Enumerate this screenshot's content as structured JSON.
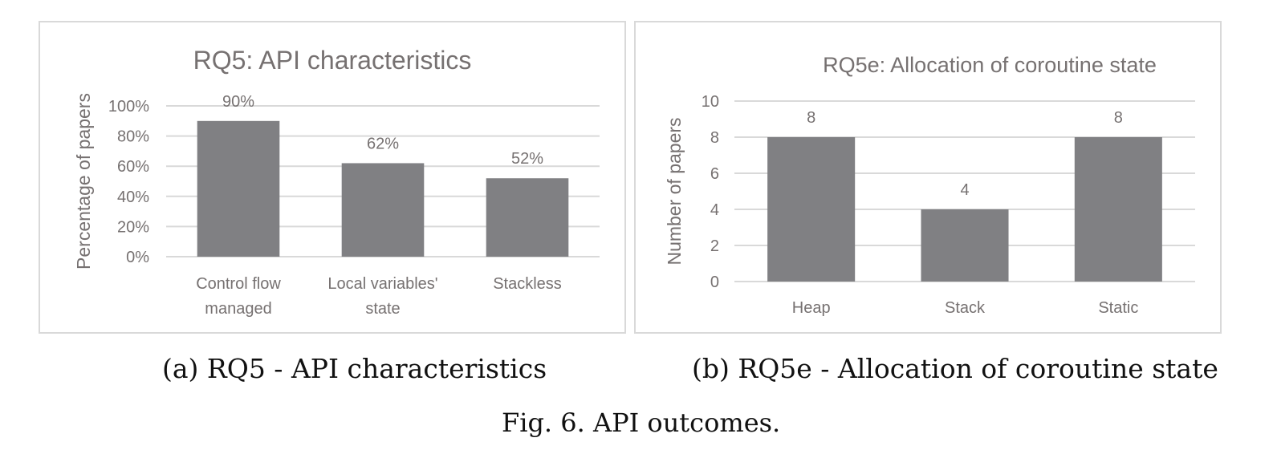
{
  "chart_data": [
    {
      "type": "bar",
      "title": "RQ5: API characteristics",
      "xlabel": "",
      "ylabel": "Percentage of papers",
      "categories": [
        [
          "Control flow",
          "managed"
        ],
        [
          "Local variables'",
          "state"
        ],
        [
          "Stackless"
        ]
      ],
      "values": [
        90,
        62,
        52
      ],
      "data_labels": [
        "90%",
        "62%",
        "52%"
      ],
      "yticks": [
        "0%",
        "20%",
        "40%",
        "60%",
        "80%",
        "100%"
      ],
      "ylim": [
        0,
        100
      ],
      "grid": true,
      "bar_color": "#808083"
    },
    {
      "type": "bar",
      "title": "RQ5e: Allocation of coroutine state",
      "xlabel": "",
      "ylabel": "Number of papers",
      "categories": [
        [
          "Heap"
        ],
        [
          "Stack"
        ],
        [
          "Static"
        ]
      ],
      "values": [
        8,
        4,
        8
      ],
      "data_labels": [
        "8",
        "4",
        "8"
      ],
      "yticks": [
        "0",
        "2",
        "4",
        "6",
        "8",
        "10"
      ],
      "ylim": [
        0,
        10
      ],
      "grid": true,
      "bar_color": "#808083"
    }
  ],
  "captions": {
    "a": "(a) RQ5 - API characteristics",
    "b": "(b) RQ5e - Allocation of coroutine state",
    "figure": "Fig. 6.  API outcomes."
  }
}
